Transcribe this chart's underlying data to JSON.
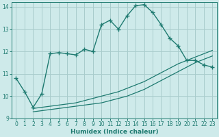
{
  "xlabel": "Humidex (Indice chaleur)",
  "xlim": [
    -0.5,
    23.5
  ],
  "ylim": [
    9,
    14.2
  ],
  "xticks": [
    0,
    1,
    2,
    3,
    4,
    5,
    6,
    7,
    8,
    9,
    10,
    11,
    12,
    13,
    14,
    15,
    16,
    17,
    18,
    19,
    20,
    21,
    22,
    23
  ],
  "yticks": [
    9,
    10,
    11,
    12,
    13,
    14
  ],
  "background_color": "#ceeaea",
  "grid_color": "#a8cccc",
  "line_color": "#1e7a70",
  "line1_x": [
    0,
    1,
    2,
    3,
    4,
    5,
    6,
    7,
    8,
    9,
    10,
    11,
    12,
    13,
    14,
    15,
    16,
    17,
    18,
    19,
    20,
    21,
    22,
    23
  ],
  "line1_y": [
    10.8,
    10.2,
    9.5,
    10.1,
    11.9,
    11.95,
    11.9,
    11.85,
    12.1,
    12.0,
    13.2,
    13.4,
    13.0,
    13.6,
    14.05,
    14.1,
    13.75,
    13.2,
    12.6,
    12.25,
    11.6,
    11.6,
    11.4,
    11.3
  ],
  "line2_x": [
    2,
    3,
    4,
    5,
    6,
    7,
    8,
    9,
    10,
    11,
    12,
    13,
    14,
    15,
    16,
    17,
    18,
    19,
    20,
    21,
    22,
    23
  ],
  "line2_y": [
    9.45,
    9.5,
    9.55,
    9.6,
    9.65,
    9.7,
    9.8,
    9.9,
    10.0,
    10.1,
    10.2,
    10.35,
    10.5,
    10.65,
    10.85,
    11.05,
    11.25,
    11.45,
    11.6,
    11.75,
    11.9,
    12.05
  ],
  "line3_x": [
    2,
    3,
    4,
    5,
    6,
    7,
    8,
    9,
    10,
    11,
    12,
    13,
    14,
    15,
    16,
    17,
    18,
    19,
    20,
    21,
    22,
    23
  ],
  "line3_y": [
    9.3,
    9.35,
    9.4,
    9.45,
    9.5,
    9.55,
    9.6,
    9.65,
    9.7,
    9.8,
    9.9,
    10.0,
    10.15,
    10.3,
    10.5,
    10.7,
    10.9,
    11.1,
    11.3,
    11.5,
    11.65,
    11.8
  ]
}
